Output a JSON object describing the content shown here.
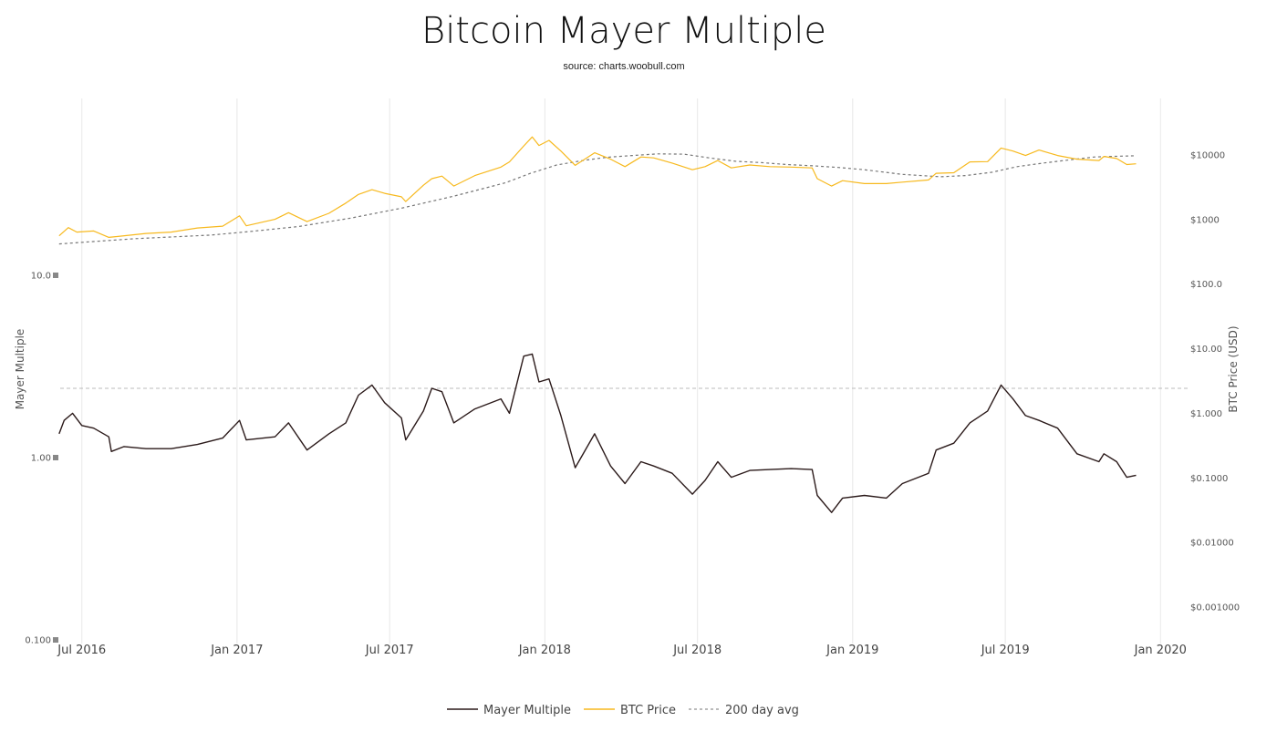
{
  "chart_data": {
    "type": "line",
    "title": "Bitcoin Mayer Multiple",
    "subtitle": "source: charts.woobull.com",
    "x_ticks": [
      "Jul 2016",
      "Jan 2017",
      "Jul 2017",
      "Jan 2018",
      "Jul 2018",
      "Jan 2019",
      "Jul 2019",
      "Jan 2020"
    ],
    "x_range": [
      "2016-06-01",
      "2020-01-31"
    ],
    "y_left": {
      "title": "Mayer Multiple",
      "scale": "log",
      "range": [
        0.1,
        20
      ],
      "ticks": [
        "10.0",
        "1.00",
        "0.100"
      ]
    },
    "y_right": {
      "title": "BTC Price (USD)",
      "scale": "log",
      "range": [
        0.0005,
        100000
      ],
      "ticks": [
        "$10000",
        "$1000",
        "$100.0",
        "$10.00",
        "$1.000",
        "$0.1000",
        "$0.01000",
        "$0.001000"
      ]
    },
    "reference_line": {
      "axis": "left",
      "value": 2.4,
      "style": "dashed",
      "color": "#bbbbbb"
    },
    "grid": {
      "x": true,
      "y": false
    },
    "legend_position": "bottom-center",
    "series": [
      {
        "name": "Mayer Multiple",
        "axis": "left",
        "color": "#2b1a1a",
        "points": [
          [
            "2016-06-04",
            1.35
          ],
          [
            "2016-06-10",
            1.6
          ],
          [
            "2016-06-20",
            1.75
          ],
          [
            "2016-07-01",
            1.5
          ],
          [
            "2016-07-15",
            1.45
          ],
          [
            "2016-08-02",
            1.3
          ],
          [
            "2016-08-05",
            1.08
          ],
          [
            "2016-08-20",
            1.15
          ],
          [
            "2016-09-15",
            1.12
          ],
          [
            "2016-10-15",
            1.12
          ],
          [
            "2016-11-15",
            1.18
          ],
          [
            "2016-12-15",
            1.28
          ],
          [
            "2017-01-04",
            1.6
          ],
          [
            "2017-01-12",
            1.25
          ],
          [
            "2017-02-15",
            1.3
          ],
          [
            "2017-03-03",
            1.55
          ],
          [
            "2017-03-25",
            1.1
          ],
          [
            "2017-04-20",
            1.35
          ],
          [
            "2017-05-10",
            1.55
          ],
          [
            "2017-05-25",
            2.2
          ],
          [
            "2017-06-10",
            2.5
          ],
          [
            "2017-06-25",
            2.0
          ],
          [
            "2017-07-15",
            1.65
          ],
          [
            "2017-07-20",
            1.25
          ],
          [
            "2017-08-10",
            1.8
          ],
          [
            "2017-08-20",
            2.4
          ],
          [
            "2017-09-01",
            2.3
          ],
          [
            "2017-09-15",
            1.55
          ],
          [
            "2017-10-10",
            1.85
          ],
          [
            "2017-11-10",
            2.1
          ],
          [
            "2017-11-20",
            1.75
          ],
          [
            "2017-12-07",
            3.6
          ],
          [
            "2017-12-17",
            3.7
          ],
          [
            "2017-12-25",
            2.6
          ],
          [
            "2018-01-06",
            2.7
          ],
          [
            "2018-01-20",
            1.7
          ],
          [
            "2018-02-06",
            0.88
          ],
          [
            "2018-03-01",
            1.35
          ],
          [
            "2018-03-20",
            0.9
          ],
          [
            "2018-04-06",
            0.72
          ],
          [
            "2018-04-25",
            0.95
          ],
          [
            "2018-05-10",
            0.9
          ],
          [
            "2018-06-01",
            0.82
          ],
          [
            "2018-06-25",
            0.63
          ],
          [
            "2018-07-10",
            0.75
          ],
          [
            "2018-07-25",
            0.95
          ],
          [
            "2018-08-10",
            0.78
          ],
          [
            "2018-09-01",
            0.85
          ],
          [
            "2018-09-25",
            0.86
          ],
          [
            "2018-10-20",
            0.87
          ],
          [
            "2018-11-14",
            0.86
          ],
          [
            "2018-11-20",
            0.62
          ],
          [
            "2018-12-07",
            0.5
          ],
          [
            "2018-12-20",
            0.6
          ],
          [
            "2019-01-15",
            0.62
          ],
          [
            "2019-02-10",
            0.6
          ],
          [
            "2019-03-01",
            0.72
          ],
          [
            "2019-04-01",
            0.82
          ],
          [
            "2019-04-10",
            1.1
          ],
          [
            "2019-05-01",
            1.2
          ],
          [
            "2019-05-20",
            1.55
          ],
          [
            "2019-06-10",
            1.8
          ],
          [
            "2019-06-26",
            2.5
          ],
          [
            "2019-07-10",
            2.1
          ],
          [
            "2019-07-25",
            1.7
          ],
          [
            "2019-08-10",
            1.6
          ],
          [
            "2019-09-01",
            1.45
          ],
          [
            "2019-09-24",
            1.05
          ],
          [
            "2019-10-20",
            0.95
          ],
          [
            "2019-10-26",
            1.05
          ],
          [
            "2019-11-10",
            0.95
          ],
          [
            "2019-11-22",
            0.78
          ],
          [
            "2019-12-03",
            0.8
          ]
        ]
      },
      {
        "name": "BTC Price",
        "axis": "right",
        "color": "#f7b91e",
        "points": [
          [
            "2016-06-04",
            560
          ],
          [
            "2016-06-15",
            750
          ],
          [
            "2016-06-25",
            640
          ],
          [
            "2016-07-15",
            665
          ],
          [
            "2016-08-02",
            530
          ],
          [
            "2016-09-15",
            610
          ],
          [
            "2016-10-15",
            640
          ],
          [
            "2016-11-15",
            740
          ],
          [
            "2016-12-15",
            790
          ],
          [
            "2017-01-04",
            1140
          ],
          [
            "2017-01-12",
            800
          ],
          [
            "2017-02-15",
            1010
          ],
          [
            "2017-03-03",
            1280
          ],
          [
            "2017-03-25",
            930
          ],
          [
            "2017-04-20",
            1250
          ],
          [
            "2017-05-10",
            1800
          ],
          [
            "2017-05-25",
            2450
          ],
          [
            "2017-06-10",
            2900
          ],
          [
            "2017-06-25",
            2550
          ],
          [
            "2017-07-15",
            2250
          ],
          [
            "2017-07-20",
            1900
          ],
          [
            "2017-08-10",
            3400
          ],
          [
            "2017-08-20",
            4300
          ],
          [
            "2017-09-01",
            4700
          ],
          [
            "2017-09-15",
            3300
          ],
          [
            "2017-10-10",
            4800
          ],
          [
            "2017-11-10",
            6500
          ],
          [
            "2017-11-20",
            7800
          ],
          [
            "2017-12-07",
            13800
          ],
          [
            "2017-12-17",
            19000
          ],
          [
            "2017-12-25",
            14000
          ],
          [
            "2018-01-06",
            16800
          ],
          [
            "2018-01-20",
            11500
          ],
          [
            "2018-02-06",
            6900
          ],
          [
            "2018-03-01",
            10800
          ],
          [
            "2018-03-20",
            8600
          ],
          [
            "2018-04-06",
            6600
          ],
          [
            "2018-04-25",
            9300
          ],
          [
            "2018-05-10",
            9000
          ],
          [
            "2018-06-01",
            7500
          ],
          [
            "2018-06-25",
            5900
          ],
          [
            "2018-07-10",
            6600
          ],
          [
            "2018-07-25",
            8200
          ],
          [
            "2018-08-10",
            6300
          ],
          [
            "2018-09-01",
            7000
          ],
          [
            "2018-09-25",
            6600
          ],
          [
            "2018-10-20",
            6500
          ],
          [
            "2018-11-14",
            6300
          ],
          [
            "2018-11-20",
            4300
          ],
          [
            "2018-12-07",
            3300
          ],
          [
            "2018-12-20",
            4000
          ],
          [
            "2019-01-15",
            3600
          ],
          [
            "2019-02-10",
            3600
          ],
          [
            "2019-03-01",
            3800
          ],
          [
            "2019-04-01",
            4100
          ],
          [
            "2019-04-10",
            5200
          ],
          [
            "2019-05-01",
            5300
          ],
          [
            "2019-05-20",
            7800
          ],
          [
            "2019-06-10",
            7900
          ],
          [
            "2019-06-26",
            12800
          ],
          [
            "2019-07-10",
            11500
          ],
          [
            "2019-07-25",
            9800
          ],
          [
            "2019-08-10",
            11900
          ],
          [
            "2019-09-01",
            9800
          ],
          [
            "2019-09-24",
            8600
          ],
          [
            "2019-10-20",
            8200
          ],
          [
            "2019-10-26",
            9500
          ],
          [
            "2019-11-10",
            8800
          ],
          [
            "2019-11-22",
            7100
          ],
          [
            "2019-12-03",
            7300
          ]
        ]
      },
      {
        "name": "200 day avg",
        "axis": "right",
        "color": "#777777",
        "style": "dashed",
        "points": [
          [
            "2016-06-04",
            420
          ],
          [
            "2016-09-01",
            505
          ],
          [
            "2016-12-01",
            575
          ],
          [
            "2017-01-15",
            650
          ],
          [
            "2017-03-15",
            780
          ],
          [
            "2017-05-15",
            1050
          ],
          [
            "2017-07-15",
            1500
          ],
          [
            "2017-09-15",
            2300
          ],
          [
            "2017-11-15",
            3700
          ],
          [
            "2017-12-15",
            5200
          ],
          [
            "2018-01-15",
            7000
          ],
          [
            "2018-02-15",
            8200
          ],
          [
            "2018-03-15",
            9200
          ],
          [
            "2018-04-15",
            9800
          ],
          [
            "2018-05-15",
            10400
          ],
          [
            "2018-06-15",
            10300
          ],
          [
            "2018-07-15",
            9000
          ],
          [
            "2018-08-15",
            8000
          ],
          [
            "2018-09-15",
            7600
          ],
          [
            "2018-10-15",
            7100
          ],
          [
            "2018-11-15",
            6800
          ],
          [
            "2018-12-15",
            6400
          ],
          [
            "2019-01-15",
            5900
          ],
          [
            "2019-03-01",
            5000
          ],
          [
            "2019-04-15",
            4600
          ],
          [
            "2019-05-15",
            4800
          ],
          [
            "2019-06-15",
            5400
          ],
          [
            "2019-07-15",
            6600
          ],
          [
            "2019-08-15",
            7500
          ],
          [
            "2019-09-15",
            8400
          ],
          [
            "2019-10-15",
            9300
          ],
          [
            "2019-11-15",
            9600
          ],
          [
            "2019-12-03",
            9700
          ]
        ]
      }
    ]
  }
}
